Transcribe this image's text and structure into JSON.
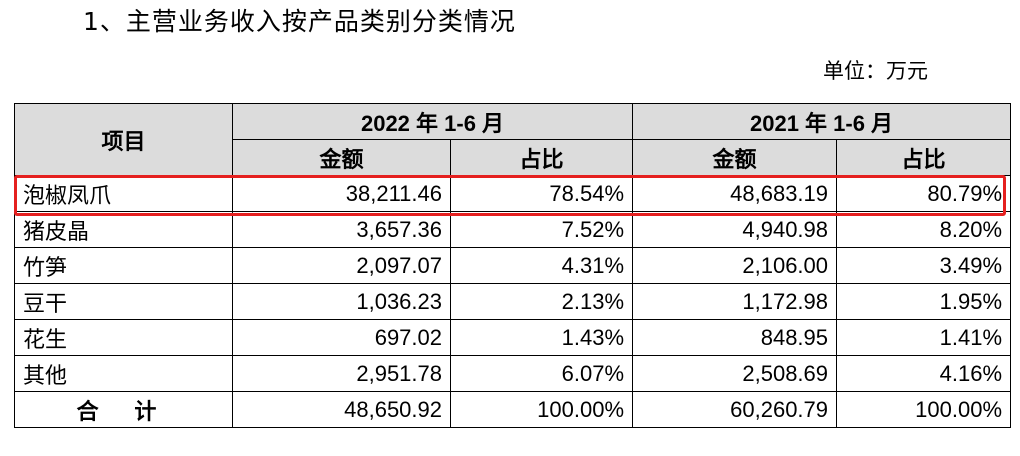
{
  "title": "1、主营业务收入按产品类别分类情况",
  "unit": "单位：万元",
  "table": {
    "header_item": "项目",
    "periods": [
      "2022 年 1-6 月",
      "2021 年 1-6 月"
    ],
    "subheaders": [
      "金额",
      "占比",
      "金额",
      "占比"
    ],
    "rows": [
      {
        "name": "泡椒凤爪",
        "a1": "38,211.46",
        "p1": "78.54%",
        "a2": "48,683.19",
        "p2": "80.79%"
      },
      {
        "name": "猪皮晶",
        "a1": "3,657.36",
        "p1": "7.52%",
        "a2": "4,940.98",
        "p2": "8.20%"
      },
      {
        "name": "竹笋",
        "a1": "2,097.07",
        "p1": "4.31%",
        "a2": "2,106.00",
        "p2": "3.49%"
      },
      {
        "name": "豆干",
        "a1": "1,036.23",
        "p1": "2.13%",
        "a2": "1,172.98",
        "p2": "1.95%"
      },
      {
        "name": "花生",
        "a1": "697.02",
        "p1": "1.43%",
        "a2": "848.95",
        "p2": "1.41%"
      },
      {
        "name": "其他",
        "a1": "2,951.78",
        "p1": "6.07%",
        "a2": "2,508.69",
        "p2": "4.16%"
      }
    ],
    "total": {
      "name": "合 计",
      "a1": "48,650.92",
      "p1": "100.00%",
      "a2": "60,260.79",
      "p2": "100.00%"
    }
  },
  "colors": {
    "highlight_border": "#e5201f",
    "header_bg": "#dcdcdc"
  }
}
